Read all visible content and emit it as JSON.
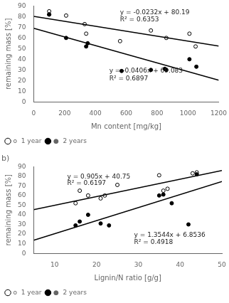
{
  "chart_data": [
    {
      "type": "scatter",
      "xlabel": "Mn content [mg/kg]",
      "ylabel": "remaining mass [%]",
      "series": [
        {
          "name": "o  1 year",
          "color": "black",
          "marker": "open_circle",
          "x": [
            100,
            100,
            210,
            330,
            340,
            560,
            760,
            860,
            1010,
            1050
          ],
          "values": [
            85,
            82,
            81,
            73,
            64,
            57,
            67,
            60,
            64,
            52
          ]
        },
        {
          "name": "●  2 years",
          "color": "black",
          "marker": "circle",
          "x": [
            100,
            210,
            340,
            350,
            570,
            760,
            850,
            860,
            1010,
            1055
          ],
          "values": [
            82,
            60,
            52,
            55,
            29,
            30,
            31,
            30,
            40,
            33
          ]
        },
        {
          "type": "line",
          "color": "black",
          "x": [
            0,
            1200
          ],
          "values": [
            80.19,
            52.35
          ]
        },
        {
          "type": "line",
          "color": "black",
          "x": [
            0,
            1200
          ],
          "values": [
            69.083,
            20.363
          ]
        }
      ],
      "annotations": [
        {
          "text": "y = -0.0232x + 80.19",
          "x": 560,
          "y": 87
        },
        {
          "text": "R² = 0.6353",
          "x": 560,
          "y": 80
        },
        {
          "text": "y = -0.0406x + 69.083",
          "x": 490,
          "y": 32
        },
        {
          "text": "R² = 0.6897",
          "x": 490,
          "y": 25
        }
      ],
      "xlim": [
        0,
        1200
      ],
      "ylim": [
        0,
        90
      ],
      "xticks": [
        0,
        200,
        400,
        600,
        800,
        1000,
        1200
      ],
      "yticks": [
        0,
        10,
        20,
        30,
        40,
        50,
        60,
        70,
        80,
        90
      ],
      "grid": false,
      "legend": "lower left"
    },
    {
      "type": "scatter",
      "title": "b)",
      "xlabel": "Lignin/N ratio [g/g]",
      "ylabel": "remaining mass [%]",
      "series": [
        {
          "name": "o  1 year",
          "color": "black",
          "marker": "open_circle",
          "x": [
            15,
            16,
            18,
            21,
            22,
            25,
            35,
            36,
            37,
            43,
            44
          ],
          "values": [
            52,
            65,
            60,
            57,
            60,
            71,
            81,
            65,
            67,
            83,
            84
          ]
        },
        {
          "name": "●  2 years",
          "color": "black",
          "marker": "circle",
          "x": [
            15,
            16,
            18,
            21,
            23,
            35,
            36,
            38,
            42,
            44
          ],
          "values": [
            29,
            33,
            40,
            31,
            29,
            60,
            61,
            52,
            30,
            82
          ]
        },
        {
          "type": "line",
          "color": "black",
          "x": [
            5,
            50
          ],
          "values": [
            45.275,
            86
          ]
        },
        {
          "type": "line",
          "color": "black",
          "x": [
            5,
            50
          ],
          "values": [
            13.6256,
            74.5736
          ]
        }
      ],
      "annotations": [
        {
          "text": "y = 0.905x + 40.75",
          "x": 13,
          "y": 83
        },
        {
          "text": "R² = 0.6197",
          "x": 13,
          "y": 76
        },
        {
          "text": "y = 1.3544x + 6.8536",
          "x": 29,
          "y": 22
        },
        {
          "text": "R² = 0.4918",
          "x": 29,
          "y": 15
        }
      ],
      "xlim": [
        5,
        50
      ],
      "ylim": [
        0,
        90
      ],
      "xticks": [
        10,
        20,
        30,
        40,
        50
      ],
      "yticks": [
        0,
        10,
        20,
        30,
        40,
        50,
        60,
        70,
        80,
        90
      ],
      "grid": false,
      "legend": "lower left"
    }
  ]
}
